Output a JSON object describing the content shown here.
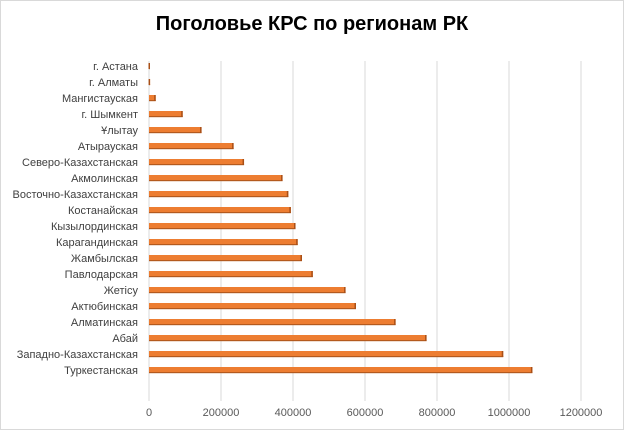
{
  "chart_data": {
    "type": "bar",
    "orientation": "horizontal",
    "title": "Поголовье КРС по регионам РК",
    "xlabel": "",
    "ylabel": "",
    "xlim": [
      0,
      1200000
    ],
    "xticks": [
      "0",
      "200000",
      "400000",
      "600000",
      "800000",
      "1000000",
      "1200000"
    ],
    "grid": true,
    "legend": "none",
    "bar_color": "#ed7d31",
    "categories": [
      "г. Астана",
      "г. Алматы",
      "Мангистауская",
      "г. Шымкент",
      "Ұлытау",
      "Атырауская",
      "Северо-Казахстанская",
      "Акмолинская",
      "Восточно-Казахстанская",
      "Костанайская",
      "Кызылординская",
      "Карагандинская",
      "Жамбылская",
      "Павлодарская",
      "Жетісу",
      "Актюбинская",
      "Алматинская",
      "Абай",
      "Западно-Казахстанская",
      "Туркестанская"
    ],
    "values": [
      1500,
      3000,
      18600,
      93600,
      146000,
      235000,
      264000,
      371000,
      387000,
      394000,
      407000,
      413000,
      425000,
      455000,
      546000,
      575000,
      685000,
      771000,
      984000,
      1065000
    ]
  }
}
